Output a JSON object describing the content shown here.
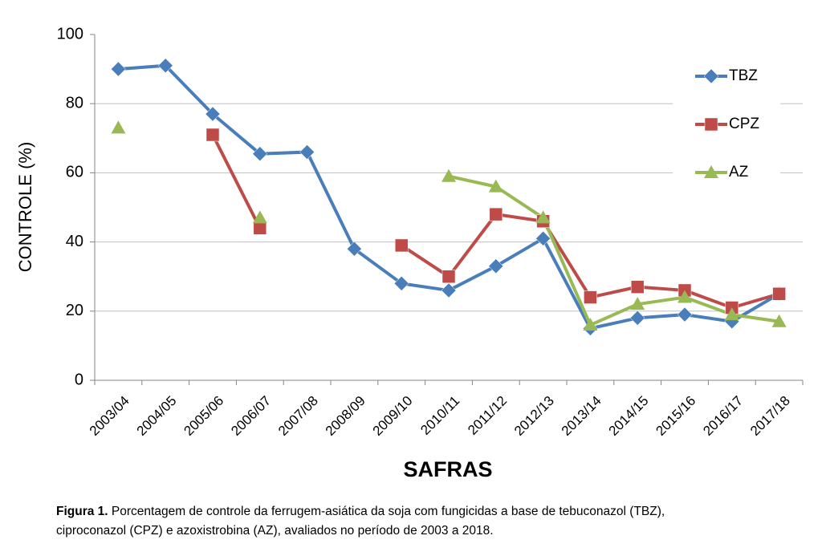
{
  "chart_data": {
    "type": "line",
    "y_label": "CONTROLE (%)",
    "x_label": "SAFRAS",
    "categories": [
      "2003/04",
      "2004/05",
      "2005/06",
      "2006/07",
      "2007/08",
      "2008/09",
      "2009/10",
      "2010/11",
      "2011/12",
      "2012/13",
      "2013/14",
      "2014/15",
      "2015/16",
      "2016/17",
      "2017/18"
    ],
    "series": [
      {
        "name": "TBZ",
        "color": "#4a7ebb",
        "marker": "diamond",
        "values": [
          90,
          91,
          77,
          65.5,
          66,
          38,
          28,
          26,
          33,
          41,
          15,
          18,
          19,
          17,
          25
        ]
      },
      {
        "name": "CPZ",
        "color": "#be4b48",
        "marker": "square",
        "values": [
          null,
          null,
          71,
          44,
          null,
          null,
          39,
          30,
          48,
          46,
          24,
          27,
          26,
          21,
          25
        ]
      },
      {
        "name": "AZ",
        "color": "#98b954",
        "marker": "triangle",
        "values": [
          73,
          null,
          null,
          47,
          null,
          null,
          null,
          59,
          56,
          47,
          16,
          22,
          24,
          19,
          17
        ]
      }
    ],
    "ylim": [
      0,
      100
    ],
    "yticks": [
      0,
      20,
      40,
      60,
      80,
      100
    ],
    "grid": true,
    "legend": "right"
  },
  "caption": {
    "label": "Figura 1.",
    "lines": [
      "Porcentagem de controle da ferrugem-asiática da soja com fungicidas a base de tebuconazol (TBZ),",
      "ciproconazol (CPZ) e azoxistrobina (AZ), avaliados no período de 2003 a 2018."
    ]
  }
}
